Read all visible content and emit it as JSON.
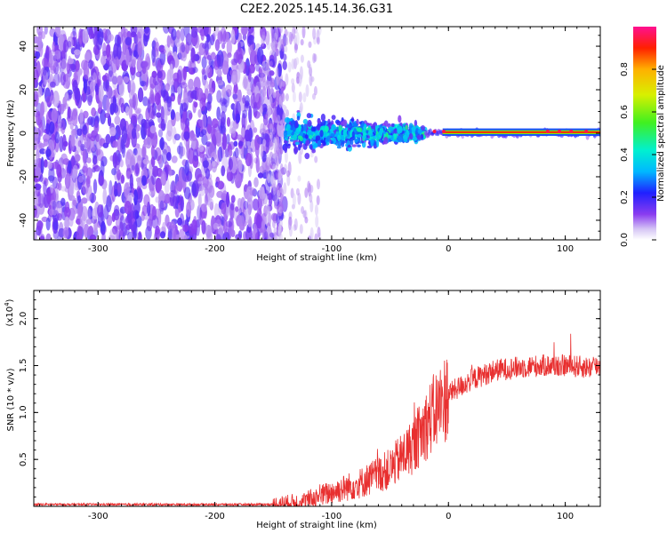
{
  "title": "C2E2.2025.145.14.36.G31",
  "chart_data": [
    {
      "type": "heatmap",
      "xlabel": "Height of straight line (km)",
      "ylabel": "Frequency (Hz)",
      "xlim": [
        -355,
        130
      ],
      "ylim": [
        -49,
        49
      ],
      "xticks": [
        -300,
        -200,
        -100,
        0,
        100
      ],
      "yticks": [
        -40,
        -20,
        0,
        20,
        40
      ],
      "colorbar": {
        "label": "Normalized spectral amplitude",
        "range": [
          0,
          1
        ],
        "ticks": [
          0.0,
          0.2,
          0.4,
          0.6,
          0.8
        ]
      },
      "regions": [
        {
          "x_range": [
            -355,
            -140
          ],
          "freq_range": [
            -49,
            49
          ],
          "amplitude": "low (0.0-0.2)"
        },
        {
          "x_range": [
            -140,
            -20
          ],
          "freq_range": [
            -12,
            12
          ],
          "amplitude": "0.1-0.4"
        },
        {
          "x_range": [
            0,
            130
          ],
          "freq_range": [
            -1,
            1
          ],
          "amplitude": "peak ~0.9-1.0 at ~0 Hz"
        }
      ],
      "grid": false
    },
    {
      "type": "line",
      "xlabel": "Height of straight line (km)",
      "ylabel": "SNR (10 * v/v)",
      "y_scale_label": "(x10^4)",
      "xlim": [
        -355,
        130
      ],
      "ylim": [
        0,
        2.3
      ],
      "xticks": [
        -300,
        -200,
        -100,
        0,
        100
      ],
      "yticks": [
        0.5,
        1.0,
        1.5,
        2.0
      ],
      "series": [
        {
          "color": "#e83030",
          "x": [
            -355,
            -300,
            -250,
            -200,
            -150,
            -125,
            -100,
            -75,
            -50,
            -30,
            -15,
            0,
            20,
            40,
            60,
            80,
            100,
            120,
            130
          ],
          "values": [
            0.02,
            0.02,
            0.02,
            0.02,
            0.02,
            0.05,
            0.15,
            0.25,
            0.4,
            0.65,
            0.95,
            1.2,
            1.35,
            1.45,
            1.48,
            1.5,
            1.5,
            1.48,
            1.5
          ]
        }
      ],
      "grid": false
    }
  ]
}
